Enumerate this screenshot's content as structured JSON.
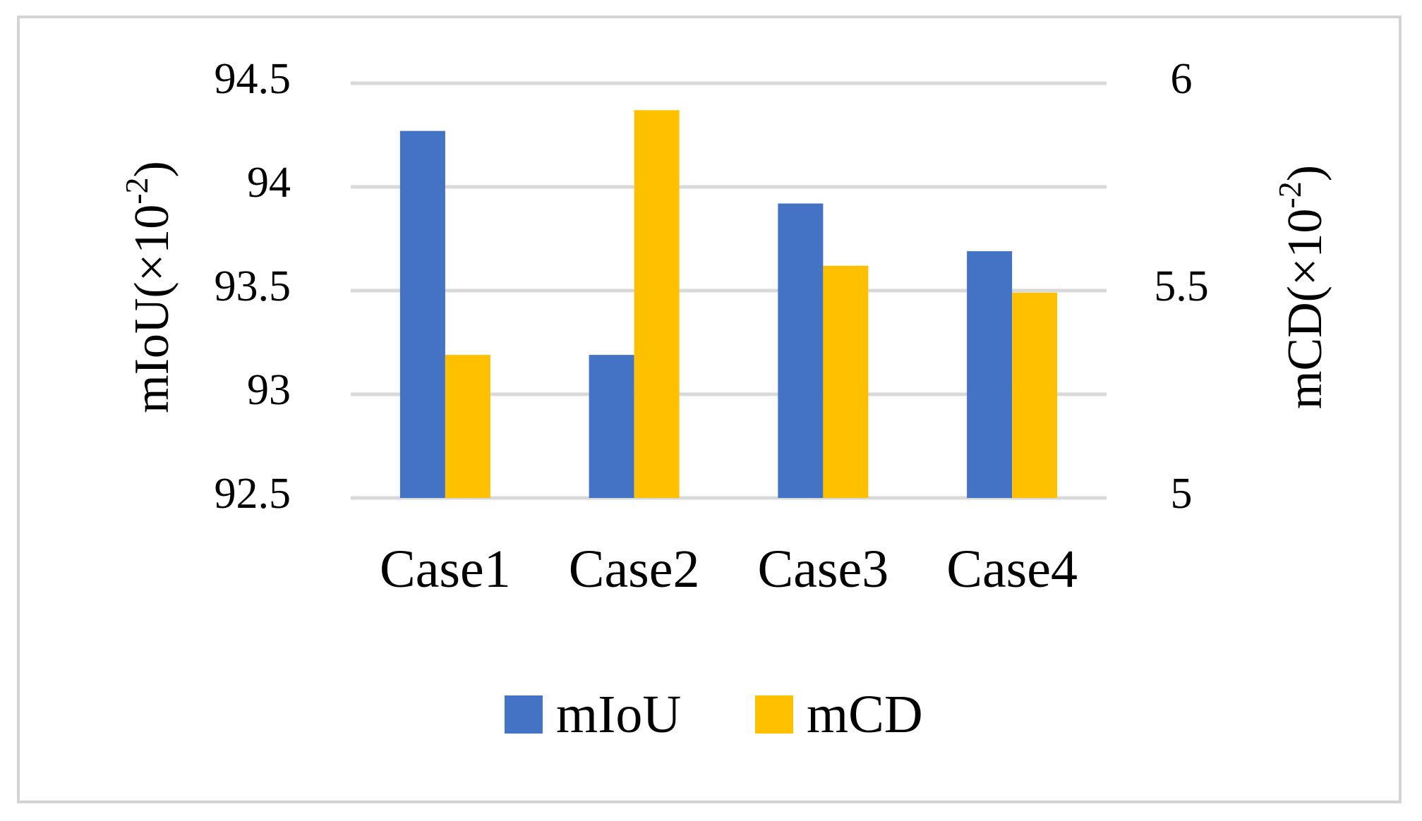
{
  "chart_data": {
    "type": "bar",
    "categories": [
      "Case1",
      "Case2",
      "Case3",
      "Case4"
    ],
    "series": [
      {
        "name": "mIoU",
        "axis": "left",
        "color": "#4472C4",
        "values": [
          94.27,
          93.19,
          93.92,
          93.69
        ]
      },
      {
        "name": "mCD",
        "axis": "right",
        "color": "#FFC000",
        "values": [
          5.345,
          5.935,
          5.56,
          5.495
        ]
      }
    ],
    "y_left": {
      "label_main": "mIoU(×10",
      "label_sup": "-2",
      "label_close": ")",
      "ylim": [
        92.5,
        94.5
      ],
      "ticks": [
        "92.5",
        "93",
        "93.5",
        "94",
        "94.5"
      ],
      "tick_values": [
        92.5,
        93,
        93.5,
        94,
        94.5
      ]
    },
    "y_right": {
      "label_main": "mCD(×10",
      "label_sup": "-2",
      "label_close": ")",
      "ylim": [
        5,
        6
      ],
      "ticks": [
        "5",
        "5.5",
        "6"
      ],
      "tick_values": [
        5,
        5.5,
        6
      ]
    },
    "grid": true,
    "gridline_color": "#d9d9d9",
    "legend_position": "bottom"
  }
}
